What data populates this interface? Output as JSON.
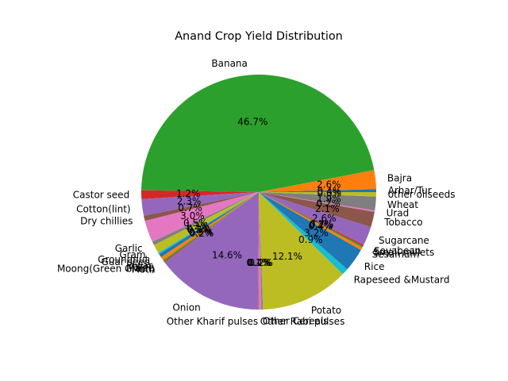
{
  "chart_data": {
    "type": "pie",
    "title": "Anand Crop Yield Distribution",
    "start_angle_deg": 0,
    "direction": "counterclockwise",
    "slices": [
      {
        "label": "Arhar/Tur",
        "value": 0.4,
        "pct_label": "0.4%",
        "color": "#1f77b4"
      },
      {
        "label": "Bajra",
        "value": 2.6,
        "pct_label": "2.6%",
        "color": "#ff7f0e"
      },
      {
        "label": "Banana",
        "value": 46.7,
        "pct_label": "46.7%",
        "color": "#2ca02c"
      },
      {
        "label": "Castor seed",
        "value": 1.2,
        "pct_label": "1.2%",
        "color": "#d62728"
      },
      {
        "label": "Cotton(lint)",
        "value": 2.3,
        "pct_label": "2.3%",
        "color": "#9467bd"
      },
      {
        "label": "Dry chillies",
        "value": 0.7,
        "pct_label": "0.7%",
        "color": "#8c564b"
      },
      {
        "label": "",
        "value": 3.0,
        "pct_label": "3.0%",
        "color": "#e377c2"
      },
      {
        "label": "Garlic",
        "value": 0.5,
        "pct_label": "0.5%",
        "color": "#7f7f7f"
      },
      {
        "label": "Gram",
        "value": 1.2,
        "pct_label": "1.2%",
        "color": "#bcbd22"
      },
      {
        "label": "Groundnut",
        "value": 0.2,
        "pct_label": "0.2%",
        "color": "#17becf"
      },
      {
        "label": "Guar seed",
        "value": 0.5,
        "pct_label": "0.5%",
        "color": "#1f77b4"
      },
      {
        "label": "Jowar",
        "value": 0.5,
        "pct_label": "0.5%",
        "color": "#ff7f0e"
      },
      {
        "label": "Maize",
        "value": 0.2,
        "pct_label": "0.2%",
        "color": "#2ca02c"
      },
      {
        "label": "Moong(Green Gram)",
        "value": 0.1,
        "pct_label": "",
        "color": "#d62728"
      },
      {
        "label": "Moth",
        "value": 0.1,
        "pct_label": "",
        "color": "#8c564b"
      },
      {
        "label": "Onion",
        "value": 14.6,
        "pct_label": "14.6%",
        "color": "#9467bd"
      },
      {
        "label": "Other Kharif pulses",
        "value": 0.1,
        "pct_label": "0.1%",
        "color": "#8c564b"
      },
      {
        "label": "Other Rabi pulses",
        "value": 0.4,
        "pct_label": "0.4%",
        "color": "#e377c2"
      },
      {
        "label": "Other Cereals",
        "value": 0.2,
        "pct_label": "0.2%",
        "color": "#7f7f7f"
      },
      {
        "label": "Potato",
        "value": 12.1,
        "pct_label": "12.1%",
        "color": "#bcbd22"
      },
      {
        "label": "Rapeseed &Mustard",
        "value": 0.9,
        "pct_label": "0.9%",
        "color": "#17becf"
      },
      {
        "label": "Rice",
        "value": 3.2,
        "pct_label": "3.2%",
        "color": "#1f77b4"
      },
      {
        "label": "Sesamum",
        "value": 0.4,
        "pct_label": "0.4%",
        "color": "#ff7f0e"
      },
      {
        "label": "Small millets",
        "value": 0.2,
        "pct_label": "0.2%",
        "color": "#2ca02c"
      },
      {
        "label": "Soyabean",
        "value": 0.2,
        "pct_label": "0.2%",
        "color": "#d62728"
      },
      {
        "label": "Sugarcane",
        "value": 2.6,
        "pct_label": "2.6%",
        "color": "#9467bd"
      },
      {
        "label": "Tobacco",
        "value": 2.1,
        "pct_label": "2.1%",
        "color": "#8c564b"
      },
      {
        "label": "Urad",
        "value": 0.2,
        "pct_label": "0.2%",
        "color": "#e377c2"
      },
      {
        "label": "Wheat",
        "value": 1.9,
        "pct_label": "1.9%",
        "color": "#7f7f7f"
      },
      {
        "label": "other oilseeds",
        "value": 0.6,
        "pct_label": "0.6%",
        "color": "#bcbd22"
      }
    ]
  }
}
